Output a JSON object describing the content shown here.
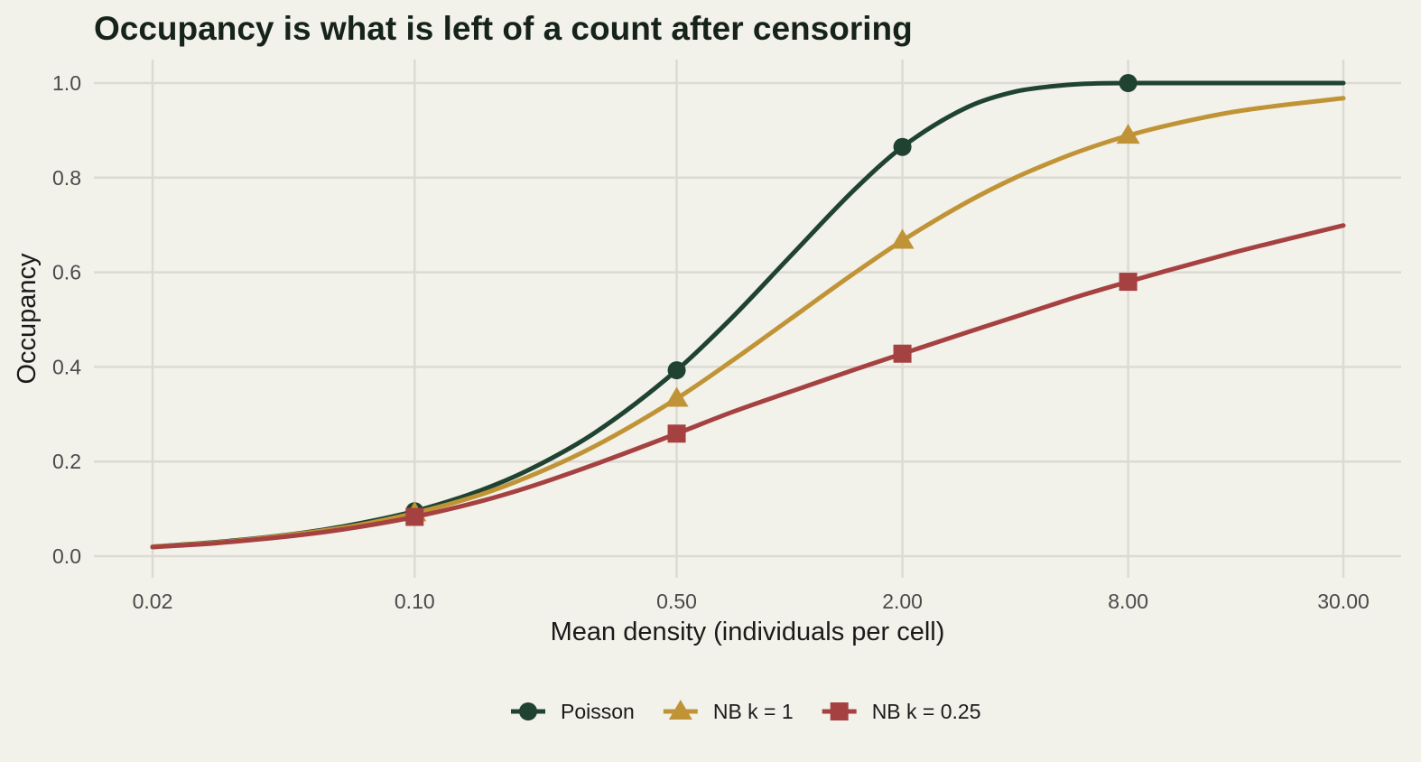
{
  "chart_data": {
    "type": "line",
    "title": "Occupancy is what is left of a count after censoring",
    "xlabel": "Mean density (individuals per cell)",
    "ylabel": "Occupancy",
    "x_scale": "log",
    "xlim": [
      0.02,
      30
    ],
    "ylim": [
      0,
      1
    ],
    "x_ticks": [
      0.02,
      0.1,
      0.5,
      2,
      8,
      30
    ],
    "x_tick_labels": [
      "0.02",
      "0.10",
      "0.50",
      "2.00",
      "8.00",
      "30.00"
    ],
    "y_ticks": [
      0,
      0.2,
      0.4,
      0.6,
      0.8,
      1
    ],
    "y_tick_labels": [
      "0.0",
      "0.2",
      "0.4",
      "0.6",
      "0.8",
      "1.0"
    ],
    "grid": true,
    "legend_position": "bottom",
    "series": [
      {
        "name": "Poisson",
        "color": "#1f4330",
        "marker": "circle",
        "x": [
          0.02,
          0.03,
          0.05,
          0.07,
          0.1,
          0.15,
          0.2,
          0.3,
          0.5,
          0.7,
          1,
          1.5,
          2,
          3,
          4,
          5,
          6,
          8,
          10,
          15,
          20,
          30
        ],
        "y": [
          0.02,
          0.03,
          0.049,
          0.068,
          0.095,
          0.139,
          0.181,
          0.259,
          0.393,
          0.503,
          0.632,
          0.777,
          0.865,
          0.95,
          0.982,
          0.993,
          0.998,
          1.0,
          1.0,
          1.0,
          1.0,
          1.0
        ],
        "marker_x": [
          0.1,
          0.5,
          2,
          8
        ]
      },
      {
        "name": "NB k = 1",
        "color": "#c09436",
        "marker": "triangle",
        "x": [
          0.02,
          0.03,
          0.05,
          0.07,
          0.1,
          0.15,
          0.2,
          0.3,
          0.5,
          0.7,
          1,
          1.5,
          2,
          3,
          4,
          5,
          6,
          8,
          10,
          15,
          20,
          30
        ],
        "y": [
          0.02,
          0.029,
          0.048,
          0.065,
          0.091,
          0.13,
          0.167,
          0.231,
          0.333,
          0.412,
          0.5,
          0.6,
          0.667,
          0.75,
          0.8,
          0.833,
          0.857,
          0.889,
          0.909,
          0.938,
          0.952,
          0.968
        ],
        "marker_x": [
          0.1,
          0.5,
          2,
          8
        ]
      },
      {
        "name": "NB k = 0.25",
        "color": "#a64141",
        "marker": "square",
        "x": [
          0.02,
          0.03,
          0.05,
          0.07,
          0.1,
          0.15,
          0.2,
          0.3,
          0.5,
          0.7,
          1,
          1.5,
          2,
          3,
          4,
          5,
          6,
          8,
          10,
          15,
          20,
          30
        ],
        "y": [
          0.019,
          0.028,
          0.045,
          0.061,
          0.083,
          0.116,
          0.145,
          0.193,
          0.259,
          0.304,
          0.347,
          0.395,
          0.428,
          0.474,
          0.506,
          0.531,
          0.551,
          0.58,
          0.602,
          0.64,
          0.665,
          0.699
        ],
        "marker_x": [
          0.1,
          0.5,
          2,
          8
        ]
      }
    ]
  }
}
